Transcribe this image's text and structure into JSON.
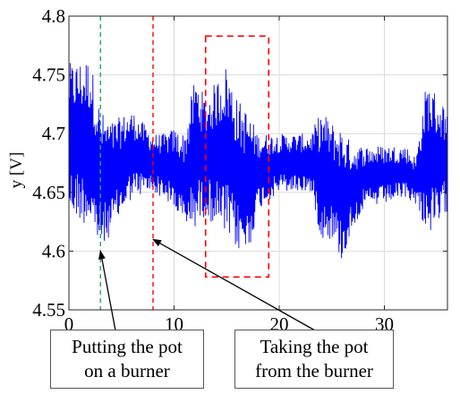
{
  "chart_data": {
    "type": "line",
    "xlabel": "",
    "ylabel": "y [V]",
    "xlim": [
      0,
      36
    ],
    "ylim": [
      4.55,
      4.8
    ],
    "x_ticks": [
      "0",
      "10",
      "20",
      "30"
    ],
    "x_tick_values": [
      0,
      10,
      20,
      30
    ],
    "y_ticks": [
      "4.55",
      "4.6",
      "4.65",
      "4.7",
      "4.75",
      "4.8"
    ],
    "y_tick_values": [
      4.55,
      4.6,
      4.65,
      4.7,
      4.75,
      4.8
    ],
    "grid": true,
    "series_color": "#0000ff",
    "envelope": [
      {
        "x": 0,
        "min": 4.63,
        "max": 4.76
      },
      {
        "x": 2,
        "min": 4.62,
        "max": 4.765
      },
      {
        "x": 3,
        "min": 4.6,
        "max": 4.72
      },
      {
        "x": 4,
        "min": 4.615,
        "max": 4.71
      },
      {
        "x": 6,
        "min": 4.645,
        "max": 4.72
      },
      {
        "x": 8,
        "min": 4.65,
        "max": 4.7
      },
      {
        "x": 9,
        "min": 4.645,
        "max": 4.7
      },
      {
        "x": 10,
        "min": 4.635,
        "max": 4.705
      },
      {
        "x": 11,
        "min": 4.62,
        "max": 4.7
      },
      {
        "x": 12,
        "min": 4.62,
        "max": 4.75
      },
      {
        "x": 13,
        "min": 4.63,
        "max": 4.73
      },
      {
        "x": 14,
        "min": 4.62,
        "max": 4.745
      },
      {
        "x": 15,
        "min": 4.61,
        "max": 4.76
      },
      {
        "x": 16,
        "min": 4.6,
        "max": 4.73
      },
      {
        "x": 17,
        "min": 4.595,
        "max": 4.72
      },
      {
        "x": 18,
        "min": 4.635,
        "max": 4.7
      },
      {
        "x": 20,
        "min": 4.65,
        "max": 4.7
      },
      {
        "x": 22,
        "min": 4.65,
        "max": 4.7
      },
      {
        "x": 23,
        "min": 4.65,
        "max": 4.7
      },
      {
        "x": 24,
        "min": 4.61,
        "max": 4.72
      },
      {
        "x": 25,
        "min": 4.61,
        "max": 4.71
      },
      {
        "x": 26,
        "min": 4.59,
        "max": 4.705
      },
      {
        "x": 27,
        "min": 4.62,
        "max": 4.69
      },
      {
        "x": 28,
        "min": 4.635,
        "max": 4.69
      },
      {
        "x": 30,
        "min": 4.64,
        "max": 4.69
      },
      {
        "x": 32,
        "min": 4.645,
        "max": 4.69
      },
      {
        "x": 33,
        "min": 4.64,
        "max": 4.68
      },
      {
        "x": 34,
        "min": 4.615,
        "max": 4.745
      },
      {
        "x": 35,
        "min": 4.615,
        "max": 4.735
      },
      {
        "x": 36,
        "min": 4.635,
        "max": 4.72
      }
    ],
    "event_lines": [
      {
        "x": 3,
        "color": "#22aa55",
        "style": "dashed"
      },
      {
        "x": 8,
        "color": "#ff0000",
        "style": "dashed"
      }
    ],
    "highlight_box": {
      "x0": 13,
      "x1": 19,
      "y0": 4.578,
      "y1": 4.783,
      "color": "#ff0000"
    },
    "annotations": [
      {
        "text": [
          "Putting the pot",
          "on a burner"
        ],
        "arrow_target": {
          "x": 3,
          "y": 4.6
        }
      },
      {
        "text": [
          "Taking the pot",
          "from the burner"
        ],
        "arrow_target": {
          "x": 8,
          "y": 4.61
        }
      }
    ]
  }
}
